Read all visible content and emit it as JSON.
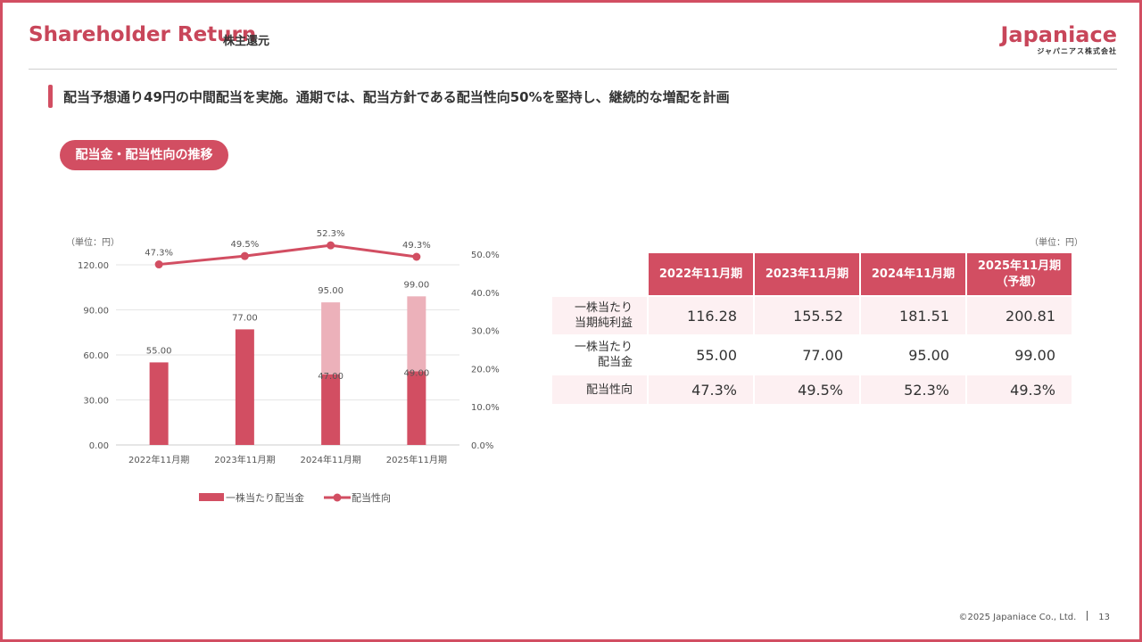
{
  "header": {
    "title": "Shareholder Return",
    "subtitle": "株主還元",
    "logo_main": "Japaniace",
    "logo_sub": "ジャパニアス株式会社"
  },
  "headline": "配当予想通り49円の中間配当を実施。通期では、配当方針である配当性向50%を堅持し、継続的な増配を計画",
  "section_pill": "配当金・配当性向の推移",
  "colors": {
    "accent": "#d24e62",
    "bar_light": "#ecb1ba",
    "shade_row": "#fdf0f2"
  },
  "chart_data": {
    "type": "bar",
    "unit_label": "（単位：円）",
    "categories": [
      "2022年11月期",
      "2023年11月期",
      "2024年11月期",
      "2025年11月期"
    ],
    "series": [
      {
        "name": "一株当たり配当金",
        "values": [
          55.0,
          77.0,
          95.0,
          99.0
        ],
        "interim": [
          null,
          null,
          47.0,
          49.0
        ],
        "color": "#d24e62",
        "light_color": "#ecb1ba"
      },
      {
        "name": "配当性向",
        "type": "line",
        "values": [
          47.3,
          49.5,
          52.3,
          49.3
        ],
        "color": "#d24e62",
        "axis": "right"
      }
    ],
    "bar_labels": [
      "55.00",
      "77.00",
      "95.00",
      "99.00"
    ],
    "interim_labels": [
      "",
      "",
      "47.00",
      "49.00"
    ],
    "line_labels": [
      "47.3%",
      "49.5%",
      "52.3%",
      "49.3%"
    ],
    "y_left": {
      "ylim": [
        0,
        120
      ],
      "ticks": [
        "0.00",
        "30.00",
        "60.00",
        "90.00",
        "120.00"
      ],
      "tick_values": [
        0,
        30,
        60,
        90,
        120
      ]
    },
    "y_right": {
      "ylim": [
        0,
        50
      ],
      "ticks": [
        "0.0%",
        "10.0%",
        "20.0%",
        "30.0%",
        "40.0%",
        "50.0%"
      ],
      "tick_values": [
        0,
        10,
        20,
        30,
        40,
        50
      ]
    },
    "grid": true,
    "legend_position": "bottom"
  },
  "table": {
    "unit_label": "（単位：円）",
    "columns": [
      "2022年11月期",
      "2023年11月期",
      "2024年11月期",
      "2025年11月期"
    ],
    "col4_sub": "（予想）",
    "rows": [
      {
        "label_line1": "一株当たり",
        "label_line2": "当期純利益",
        "values": [
          "116.28",
          "155.52",
          "181.51",
          "200.81"
        ]
      },
      {
        "label_line1": "一株当たり",
        "label_line2": "配当金",
        "values": [
          "55.00",
          "77.00",
          "95.00",
          "99.00"
        ]
      },
      {
        "label_line1": "配当性向",
        "label_line2": "",
        "values": [
          "47.3%",
          "49.5%",
          "52.3%",
          "49.3%"
        ]
      }
    ]
  },
  "footer": {
    "copyright": "©2025 Japaniace Co., Ltd.",
    "page_number": "13"
  }
}
